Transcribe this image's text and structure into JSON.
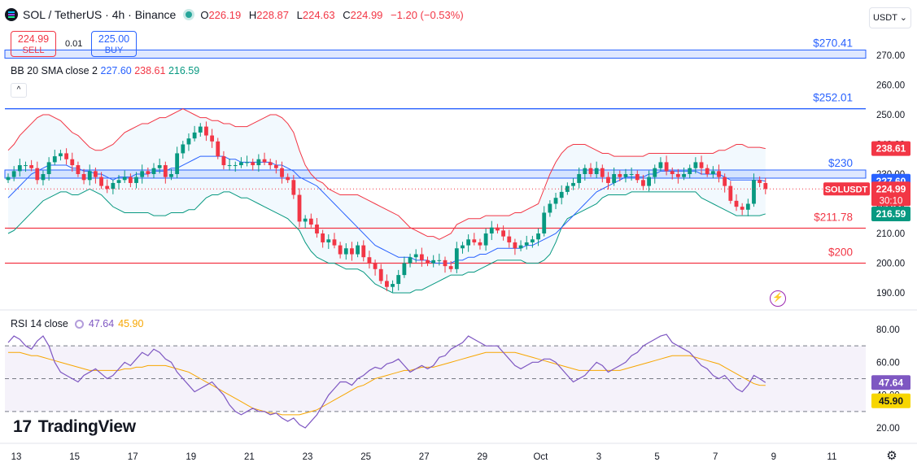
{
  "header": {
    "symbol_title": "SOL / TetherUS · 4h · Binance",
    "open_label": "O",
    "open": "226.19",
    "high_label": "H",
    "high": "228.87",
    "low_label": "L",
    "low": "224.63",
    "close_label": "C",
    "close": "224.99",
    "change": "−1.20 (−0.53%)",
    "currency_button": "USDT"
  },
  "trade": {
    "sell_price": "224.99",
    "sell_label": "SELL",
    "spread": "0.01",
    "buy_price": "225.00",
    "buy_label": "BUY"
  },
  "indicators": {
    "bb": {
      "name": "BB 20 SMA close 2",
      "basis": "227.60",
      "upper": "238.61",
      "lower": "216.59"
    },
    "rsi": {
      "name": "RSI 14 close",
      "value": "47.64",
      "ma": "45.90"
    }
  },
  "price_axis": {
    "ticks": [
      "270.00",
      "260.00",
      "250.00",
      "240.00",
      "230.00",
      "220.00",
      "210.00",
      "200.00",
      "190.00"
    ],
    "tick_values": [
      270,
      260,
      250,
      240,
      230,
      220,
      210,
      200,
      190
    ]
  },
  "rsi_axis": {
    "ticks": [
      "80.00",
      "60.00",
      "40.00",
      "20.00"
    ],
    "tick_values": [
      80,
      60,
      40,
      20
    ]
  },
  "time_axis": {
    "labels": [
      "13",
      "15",
      "17",
      "19",
      "21",
      "23",
      "25",
      "27",
      "29",
      "Oct",
      "3",
      "5",
      "7",
      "9",
      "11"
    ]
  },
  "levels": [
    {
      "label": "$270.41",
      "value": 270.41,
      "color": "#2962ff",
      "band": true
    },
    {
      "label": "$252.01",
      "value": 252.01,
      "color": "#2962ff",
      "band": false
    },
    {
      "label": "$230",
      "value": 230,
      "color": "#2962ff",
      "band": true
    },
    {
      "label": "$211.78",
      "value": 211.78,
      "color": "#f23645",
      "band": false
    },
    {
      "label": "$200",
      "value": 200,
      "color": "#f23645",
      "band": false
    }
  ],
  "axis_badges": {
    "bb_upper": "238.61",
    "bb_basis": "227.60",
    "last_symbol": "SOLUSDT",
    "last_price": "224.99",
    "countdown": "30:10",
    "bb_lower": "216.59",
    "rsi_value": "47.64",
    "rsi_ma": "45.90"
  },
  "brand": {
    "name": "TradingView"
  },
  "colors": {
    "up": "#089981",
    "down": "#f23645",
    "basis": "#2962ff",
    "upper": "#f23645",
    "lower": "#089981",
    "rsi": "#7e57c2",
    "rsi_ma": "#f7a600"
  },
  "chart_data": {
    "type": "candlestick",
    "title": "SOL / TetherUS · 4h · Binance",
    "x_labels": [
      "13",
      "15",
      "17",
      "19",
      "21",
      "23",
      "25",
      "27",
      "29",
      "Oct",
      "3",
      "5",
      "7",
      "9",
      "11"
    ],
    "ylim": [
      187,
      275
    ],
    "closes": [
      229,
      231,
      233,
      233,
      232,
      228,
      230,
      234,
      236,
      237,
      235,
      233,
      230,
      228,
      231,
      229,
      226,
      225,
      227,
      228,
      229,
      227,
      229,
      231,
      230,
      232,
      233,
      229,
      230,
      237,
      240,
      242,
      244,
      246,
      243,
      241,
      236,
      233,
      233,
      233,
      234,
      234,
      233,
      235,
      234,
      233,
      232,
      229,
      228,
      223,
      214,
      215,
      213,
      210,
      207,
      208,
      206,
      203,
      205,
      203,
      206,
      202,
      200,
      198,
      194,
      192,
      193,
      196,
      200,
      202,
      203,
      201,
      200,
      201,
      201,
      199,
      198,
      205,
      206,
      208,
      207,
      206,
      210,
      212,
      211,
      209,
      207,
      205,
      206,
      207,
      208,
      210,
      217,
      220,
      222,
      224,
      226,
      227,
      230,
      232,
      230,
      232,
      229,
      227,
      230,
      229,
      230,
      230,
      228,
      226,
      229,
      232,
      234,
      231,
      230,
      229,
      230,
      232,
      234,
      232,
      230,
      231,
      229,
      226,
      221,
      219,
      218,
      220,
      228,
      227,
      225
    ],
    "bb_basis": [
      222,
      224,
      226,
      228,
      230,
      231,
      232,
      233,
      233,
      233,
      233,
      232,
      232,
      231,
      231,
      230,
      230,
      229,
      228,
      229,
      229,
      229,
      230,
      230,
      230,
      231,
      231,
      231,
      232,
      232,
      233,
      234,
      235,
      236,
      236,
      236,
      236,
      236,
      235,
      235,
      234,
      234,
      234,
      234,
      234,
      234,
      233,
      233,
      232,
      231,
      229,
      228,
      227,
      226,
      224,
      222,
      220,
      218,
      216,
      214,
      212,
      210,
      208,
      206,
      205,
      204,
      203,
      202,
      202,
      202,
      201,
      201,
      201,
      200,
      200,
      200,
      200,
      201,
      201,
      202,
      202,
      203,
      203,
      204,
      205,
      205,
      205,
      205,
      205,
      206,
      206,
      207,
      208,
      209,
      210,
      212,
      214,
      216,
      218,
      220,
      222,
      224,
      225,
      226,
      227,
      228,
      229,
      229,
      229,
      229,
      230,
      230,
      231,
      231,
      231,
      231,
      231,
      231,
      231,
      230,
      230,
      230,
      230,
      229,
      228,
      228,
      228,
      228,
      228,
      228,
      227.6
    ],
    "bb_upper": [
      238,
      240,
      243,
      245,
      247,
      249,
      250,
      250,
      249,
      248,
      246,
      244,
      243,
      241,
      239,
      238,
      238,
      239,
      240,
      242,
      244,
      245,
      246,
      247,
      247,
      248,
      249,
      249,
      250,
      251,
      252,
      251,
      250,
      249,
      249,
      248,
      248,
      247,
      247,
      246,
      246,
      246,
      247,
      248,
      249,
      250,
      250,
      249,
      247,
      244,
      238,
      233,
      230,
      228,
      227,
      225,
      224,
      223,
      223,
      223,
      223,
      222,
      221,
      220,
      219,
      218,
      217,
      216,
      214,
      212,
      211,
      210,
      209,
      209,
      208,
      209,
      210,
      213,
      214,
      215,
      215,
      215,
      216,
      216,
      216,
      216,
      216,
      217,
      217,
      218,
      219,
      220,
      225,
      230,
      234,
      237,
      239,
      240,
      240,
      240,
      239,
      238,
      237,
      237,
      236,
      236,
      236,
      236,
      236,
      236,
      237,
      237,
      237,
      237,
      237,
      237,
      237,
      237,
      237,
      237,
      237,
      237,
      238,
      238,
      239,
      240,
      240,
      239,
      239,
      239,
      238.61
    ],
    "bb_lower": [
      210,
      211,
      213,
      215,
      217,
      219,
      221,
      222,
      223,
      224,
      224,
      223,
      223,
      224,
      225,
      224,
      223,
      221,
      219,
      218,
      217,
      217,
      217,
      217,
      217,
      216,
      216,
      216,
      217,
      217,
      217,
      218,
      218,
      220,
      222,
      223,
      223,
      224,
      224,
      223,
      222,
      222,
      221,
      220,
      219,
      218,
      217,
      216,
      215,
      213,
      211,
      207,
      204,
      202,
      201,
      200,
      200,
      199,
      198,
      198,
      198,
      197,
      195,
      193,
      192,
      191,
      190,
      190,
      190,
      190,
      191,
      191,
      192,
      193,
      194,
      195,
      196,
      196,
      196,
      197,
      197,
      198,
      199,
      200,
      201,
      201,
      201,
      201,
      201,
      200,
      200,
      200,
      201,
      203,
      207,
      212,
      215,
      216,
      217,
      218,
      219,
      220,
      222,
      223,
      223,
      223,
      223,
      224,
      224,
      224,
      224,
      224,
      224,
      224,
      224,
      224,
      224,
      224,
      224,
      222,
      221,
      220,
      219,
      218,
      217,
      216,
      216,
      216,
      216,
      216,
      216.59
    ],
    "rsi": [
      72,
      76,
      74,
      70,
      68,
      73,
      76,
      70,
      60,
      54,
      52,
      50,
      48,
      52,
      54,
      56,
      53,
      50,
      52,
      56,
      60,
      58,
      62,
      66,
      64,
      68,
      66,
      62,
      60,
      54,
      50,
      46,
      42,
      44,
      46,
      48,
      44,
      40,
      34,
      30,
      28,
      30,
      32,
      30,
      30,
      28,
      29,
      26,
      24,
      26,
      22,
      20,
      24,
      28,
      34,
      40,
      44,
      48,
      48,
      46,
      50,
      52,
      55,
      57,
      56,
      59,
      60,
      62,
      58,
      54,
      56,
      58,
      56,
      58,
      63,
      64,
      68,
      70,
      72,
      76,
      74,
      72,
      70,
      70,
      70,
      66,
      62,
      58,
      56,
      58,
      60,
      60,
      62,
      62,
      60,
      56,
      52,
      48,
      50,
      52,
      56,
      60,
      58,
      54,
      56,
      58,
      60,
      64,
      66,
      70,
      72,
      74,
      76,
      77,
      72,
      70,
      68,
      66,
      62,
      58,
      56,
      52,
      50,
      52,
      48,
      44,
      42,
      46,
      52,
      50,
      47.64
    ],
    "rsi_ma": [
      66,
      66,
      66,
      65,
      64,
      64,
      63,
      62,
      61,
      60,
      59,
      58,
      57,
      56,
      55,
      55,
      55,
      55,
      55,
      55,
      56,
      56,
      57,
      57,
      58,
      58,
      58,
      58,
      57,
      56,
      55,
      54,
      52,
      50,
      48,
      46,
      44,
      42,
      40,
      38,
      36,
      34,
      32,
      31,
      30,
      29,
      29,
      28,
      28,
      28,
      28,
      29,
      30,
      31,
      33,
      35,
      37,
      39,
      41,
      43,
      45,
      46,
      48,
      50,
      51,
      52,
      53,
      54,
      55,
      55,
      56,
      57,
      57,
      57,
      58,
      59,
      60,
      61,
      62,
      63,
      64,
      65,
      66,
      66,
      66,
      66,
      66,
      66,
      65,
      64,
      63,
      62,
      61,
      60,
      59,
      58,
      57,
      56,
      55,
      55,
      55,
      55,
      55,
      55,
      55,
      55,
      56,
      57,
      58,
      59,
      60,
      61,
      62,
      63,
      64,
      64,
      64,
      64,
      63,
      62,
      61,
      60,
      59,
      57,
      55,
      53,
      51,
      49,
      47,
      46,
      45.9
    ],
    "rsi_levels": [
      70,
      50,
      30
    ]
  }
}
